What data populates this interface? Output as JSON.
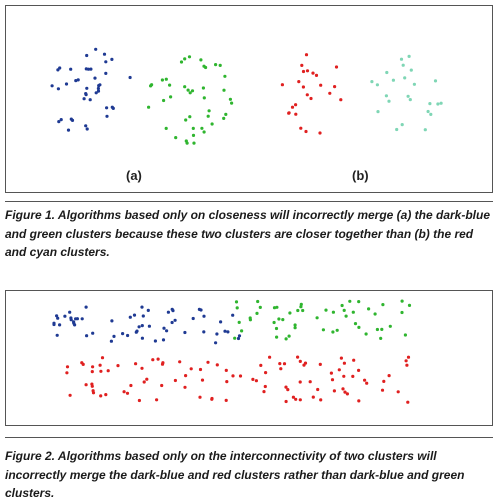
{
  "figure1": {
    "label_a": "(a)",
    "label_b": "(b)",
    "caption": "Figure 1. Algorithms based only on closeness will incorrectly merge (a) the dark-blue and green clusters because these two clusters are closer together than (b) the red and cyan clusters."
  },
  "figure2": {
    "caption": "Figure 2. Algorithms based only on the interconnectivity of two clusters will incorrectly merge the dark-blue and red clusters rather than dark-blue and green clusters."
  },
  "colors": {
    "dark_blue": "#1f3a93",
    "green": "#2fb52f",
    "red": "#e02020",
    "cyan": "#7fd6b5",
    "border": "#555555"
  }
}
